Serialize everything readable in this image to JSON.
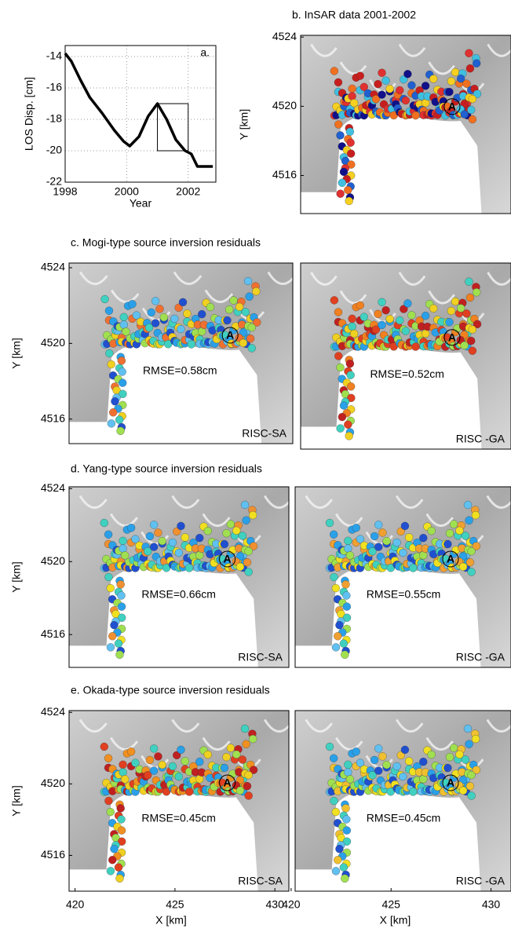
{
  "chart_data": [
    {
      "type": "line",
      "panel_label": "a.",
      "ylabel": "LOS Disp. [cm]",
      "xlabel": "Year",
      "color": "#000000",
      "grid": true,
      "x": [
        1998,
        1998.2,
        1998.5,
        1998.8,
        1999.2,
        1999.6,
        1999.9,
        2000.1,
        2000.4,
        2000.7,
        2001.0,
        2001.3,
        2001.6,
        2001.9,
        2002.1,
        2002.3,
        2002.8
      ],
      "values": [
        -13.8,
        -14.3,
        -15.5,
        -16.6,
        -17.6,
        -18.7,
        -19.4,
        -19.7,
        -19.1,
        -17.8,
        -17.0,
        -18.0,
        -19.3,
        -20.0,
        -20.2,
        -21.0,
        -21.0
      ],
      "highlight": {
        "x": [
          2001,
          2002
        ],
        "y": [
          -20,
          -17
        ]
      },
      "xlim": [
        1998,
        2002.9
      ],
      "xticks": [
        1998,
        2000,
        2002
      ],
      "ylim": [
        -22,
        -13.3
      ],
      "yticks": [
        -14,
        -16,
        -18,
        -20,
        -22
      ]
    },
    {
      "type": "map",
      "title": "b. InSAR data 2001-2002",
      "ylabel": "Y [km]",
      "marker": "A",
      "ylim": [
        4513.8,
        4524.1
      ],
      "yticks": [
        4524,
        4520,
        4516
      ]
    },
    {
      "type": "map",
      "title": "c. Mogi-type source inversion residuals",
      "ylabel": "Y [km]",
      "marker": "A",
      "rmse": "RMSE=0.58cm",
      "method": "RISC-SA",
      "ylim": [
        4514.7,
        4524.25
      ],
      "yticks": [
        4524,
        4520,
        4516
      ]
    },
    {
      "type": "map",
      "marker": "A",
      "rmse": "RMSE=0.52cm",
      "method": "RISC -GA"
    },
    {
      "type": "map",
      "title": "d. Yang-type source inversion residuals",
      "ylabel": "Y [km]",
      "marker": "A",
      "rmse": "RMSE=0.66cm",
      "method": "RISC-SA",
      "ylim": [
        4514.2,
        4524.1
      ],
      "yticks": [
        4524,
        4520,
        4516
      ]
    },
    {
      "type": "map",
      "marker": "A",
      "rmse": "RMSE=0.55cm",
      "method": "RISC -GA"
    },
    {
      "type": "map",
      "title": "e. Okada-type source inversion residuals",
      "ylabel": "Y [km]",
      "xlabel": "X [km]",
      "marker": "A",
      "rmse": "RMSE=0.45cm",
      "method": "RISC-SA",
      "ylim": [
        4514.0,
        4524.1
      ],
      "yticks": [
        4524,
        4520,
        4516
      ],
      "xlim": [
        419.7,
        430.7
      ],
      "xticks": [
        420,
        425,
        430
      ]
    },
    {
      "type": "map",
      "xlabel": "X [km]",
      "marker": "A",
      "rmse": "RMSE=0.45cm",
      "method": "RISC -GA",
      "xlim": [
        420.2,
        431.0
      ],
      "xticks": [
        420,
        425,
        430
      ]
    }
  ]
}
